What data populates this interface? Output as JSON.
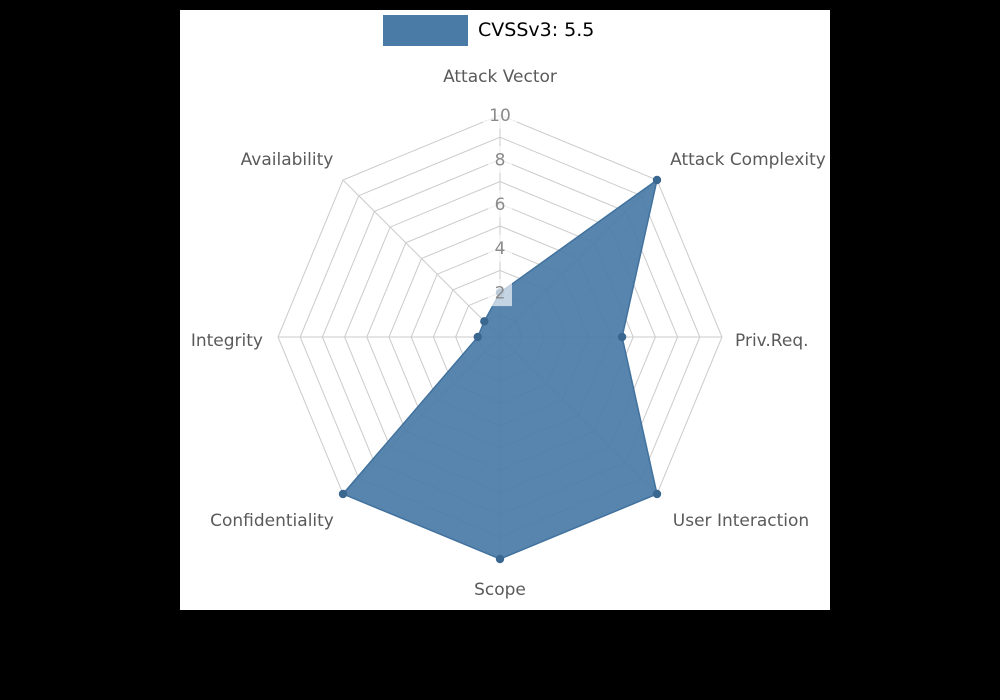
{
  "legend": {
    "label": "CVSSv3: 5.5",
    "swatch_color": "#4a7ba7"
  },
  "chart_data": {
    "type": "radar",
    "title": "CVSSv3: 5.5",
    "score": 5.5,
    "categories": [
      "Attack Vector",
      "Attack Complexity",
      "Priv.Req.",
      "User Interaction",
      "Scope",
      "Confidentiality",
      "Integrity",
      "Availability"
    ],
    "series": [
      {
        "name": "CVSSv3: 5.5",
        "values": [
          2,
          10,
          5.5,
          10,
          10,
          10,
          1,
          1
        ]
      }
    ],
    "ylim": [
      0,
      10
    ],
    "tick_values": [
      2,
      4,
      6,
      8,
      10
    ],
    "grid_rings": 10,
    "grid": true,
    "legend_position": "top",
    "colors": {
      "fill": "#4a7ba7",
      "stroke": "#41729e",
      "marker": "#3a678f",
      "grid_line": "#cbcbcb",
      "axis_label": "#5a5a5a",
      "tick_label": "#8a8a8a",
      "title": "#000000",
      "figure_background": "#ffffff",
      "page_background": "#000000"
    }
  }
}
